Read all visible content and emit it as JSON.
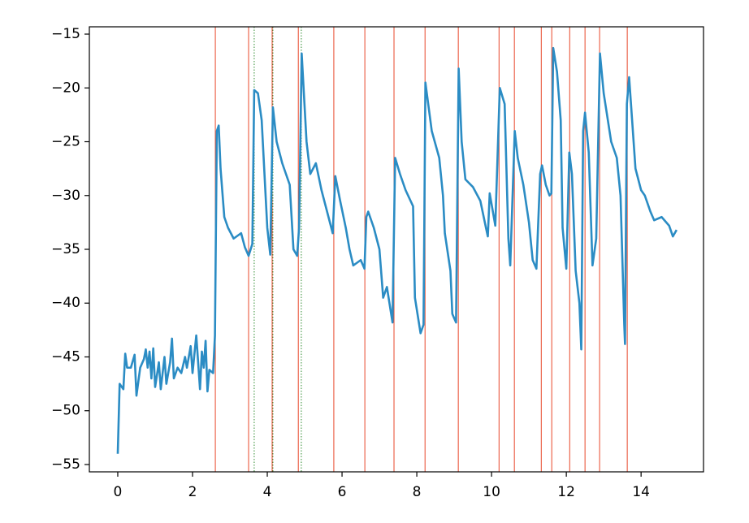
{
  "chart_data": {
    "type": "line",
    "x": [
      0,
      0.05,
      0.15,
      0.2,
      0.25,
      0.35,
      0.45,
      0.5,
      0.6,
      0.7,
      0.75,
      0.8,
      0.85,
      0.9,
      0.95,
      1.0,
      1.1,
      1.15,
      1.25,
      1.3,
      1.4,
      1.45,
      1.5,
      1.6,
      1.7,
      1.8,
      1.85,
      1.95,
      2.0,
      2.1,
      2.2,
      2.25,
      2.3,
      2.35,
      2.4,
      2.45,
      2.55,
      2.6,
      2.65,
      2.7,
      2.75,
      2.85,
      2.95,
      3.1,
      3.3,
      3.4,
      3.5,
      3.6,
      3.65,
      3.75,
      3.85,
      4.0,
      4.08,
      4.15,
      4.25,
      4.4,
      4.6,
      4.7,
      4.8,
      4.85,
      4.92,
      5.05,
      5.15,
      5.3,
      5.45,
      5.6,
      5.75,
      5.82,
      5.95,
      6.1,
      6.2,
      6.3,
      6.5,
      6.6,
      6.65,
      6.7,
      6.85,
      7.0,
      7.1,
      7.2,
      7.35,
      7.42,
      7.55,
      7.7,
      7.9,
      7.95,
      8.1,
      8.18,
      8.23,
      8.4,
      8.6,
      8.7,
      8.75,
      8.9,
      8.95,
      9.05,
      9.12,
      9.2,
      9.3,
      9.5,
      9.7,
      9.85,
      9.9,
      9.95,
      10.1,
      10.22,
      10.35,
      10.45,
      10.5,
      10.62,
      10.7,
      10.85,
      11.0,
      11.1,
      11.2,
      11.3,
      11.35,
      11.45,
      11.55,
      11.6,
      11.65,
      11.75,
      11.85,
      11.9,
      12.0,
      12.08,
      12.15,
      12.25,
      12.35,
      12.4,
      12.45,
      12.5,
      12.6,
      12.7,
      12.8,
      12.9,
      13.0,
      13.2,
      13.35,
      13.45,
      13.55,
      13.57,
      13.62,
      13.68,
      13.85,
      14.0,
      14.1,
      14.25,
      14.35,
      14.55,
      14.75,
      14.85,
      14.95
    ],
    "series": [
      {
        "color": "#2b8cc4",
        "values": [
          -54,
          -47.5,
          -48,
          -44.7,
          -46,
          -46,
          -44.8,
          -48.6,
          -46,
          -45.2,
          -44.3,
          -46,
          -44.5,
          -47,
          -44.2,
          -47.8,
          -45.5,
          -48,
          -45,
          -47.5,
          -45.5,
          -43.3,
          -47,
          -46,
          -46.5,
          -45,
          -46,
          -44,
          -46.5,
          -43,
          -48,
          -44.5,
          -46,
          -43.5,
          -48.2,
          -46.2,
          -46.5,
          -43,
          -24,
          -23.5,
          -27.5,
          -32,
          -33,
          -34,
          -33.5,
          -34.8,
          -35.6,
          -34.5,
          -20.2,
          -20.5,
          -23,
          -33,
          -35.5,
          -21.8,
          -25,
          -27,
          -29,
          -35,
          -35.6,
          -33,
          -16.8,
          -25,
          -28,
          -27,
          -29.5,
          -31.5,
          -33.5,
          -28.2,
          -30.5,
          -33,
          -35,
          -36.5,
          -36,
          -36.8,
          -32,
          -31.5,
          -33,
          -35,
          -39.5,
          -38.5,
          -41.8,
          -26.5,
          -28,
          -29.5,
          -31,
          -39.5,
          -42.8,
          -42,
          -19.5,
          -24,
          -26.5,
          -30,
          -33.5,
          -37,
          -41,
          -41.8,
          -18.2,
          -25,
          -28.5,
          -29.2,
          -30.5,
          -33,
          -33.8,
          -29.8,
          -32.8,
          -20,
          -21.5,
          -34,
          -36.5,
          -24,
          -26.5,
          -29,
          -32.5,
          -36,
          -36.8,
          -28,
          -27.2,
          -29,
          -30,
          -29.8,
          -16.3,
          -18.5,
          -23,
          -33,
          -36.8,
          -26,
          -28,
          -37,
          -40,
          -44.3,
          -24,
          -22.3,
          -26,
          -36.5,
          -34,
          -16.8,
          -20.5,
          -25,
          -26.5,
          -30,
          -42,
          -43.8,
          -21.5,
          -19,
          -27.5,
          -29.5,
          -30,
          -31.5,
          -32.3,
          -32,
          -32.8,
          -33.8,
          -33.2
        ]
      }
    ],
    "vertical_lines": [
      {
        "color": "#e8472a",
        "dashed": false,
        "x": [
          2.61,
          3.5,
          4.13,
          4.83,
          5.78,
          6.61,
          7.39,
          8.22,
          9.11,
          10.2,
          10.61,
          11.33,
          11.61,
          12.09,
          12.5,
          12.89,
          13.63
        ]
      },
      {
        "color": "#2e8b2e",
        "dashed": true,
        "x": [
          3.65,
          4.15,
          4.91
        ]
      }
    ],
    "xlim": [
      -0.76,
      15.67
    ],
    "ylim": [
      -55.68,
      -14.32
    ],
    "xticks": [
      0,
      2,
      4,
      6,
      8,
      10,
      12,
      14
    ],
    "yticks": [
      {
        "value": -15,
        "label": "−15"
      },
      {
        "value": -20,
        "label": "−20"
      },
      {
        "value": -25,
        "label": "−25"
      },
      {
        "value": -30,
        "label": "−30"
      },
      {
        "value": -35,
        "label": "−35"
      },
      {
        "value": -40,
        "label": "−40"
      },
      {
        "value": -45,
        "label": "−45"
      },
      {
        "value": -50,
        "label": "−50"
      },
      {
        "value": -55,
        "label": "−55"
      }
    ]
  }
}
